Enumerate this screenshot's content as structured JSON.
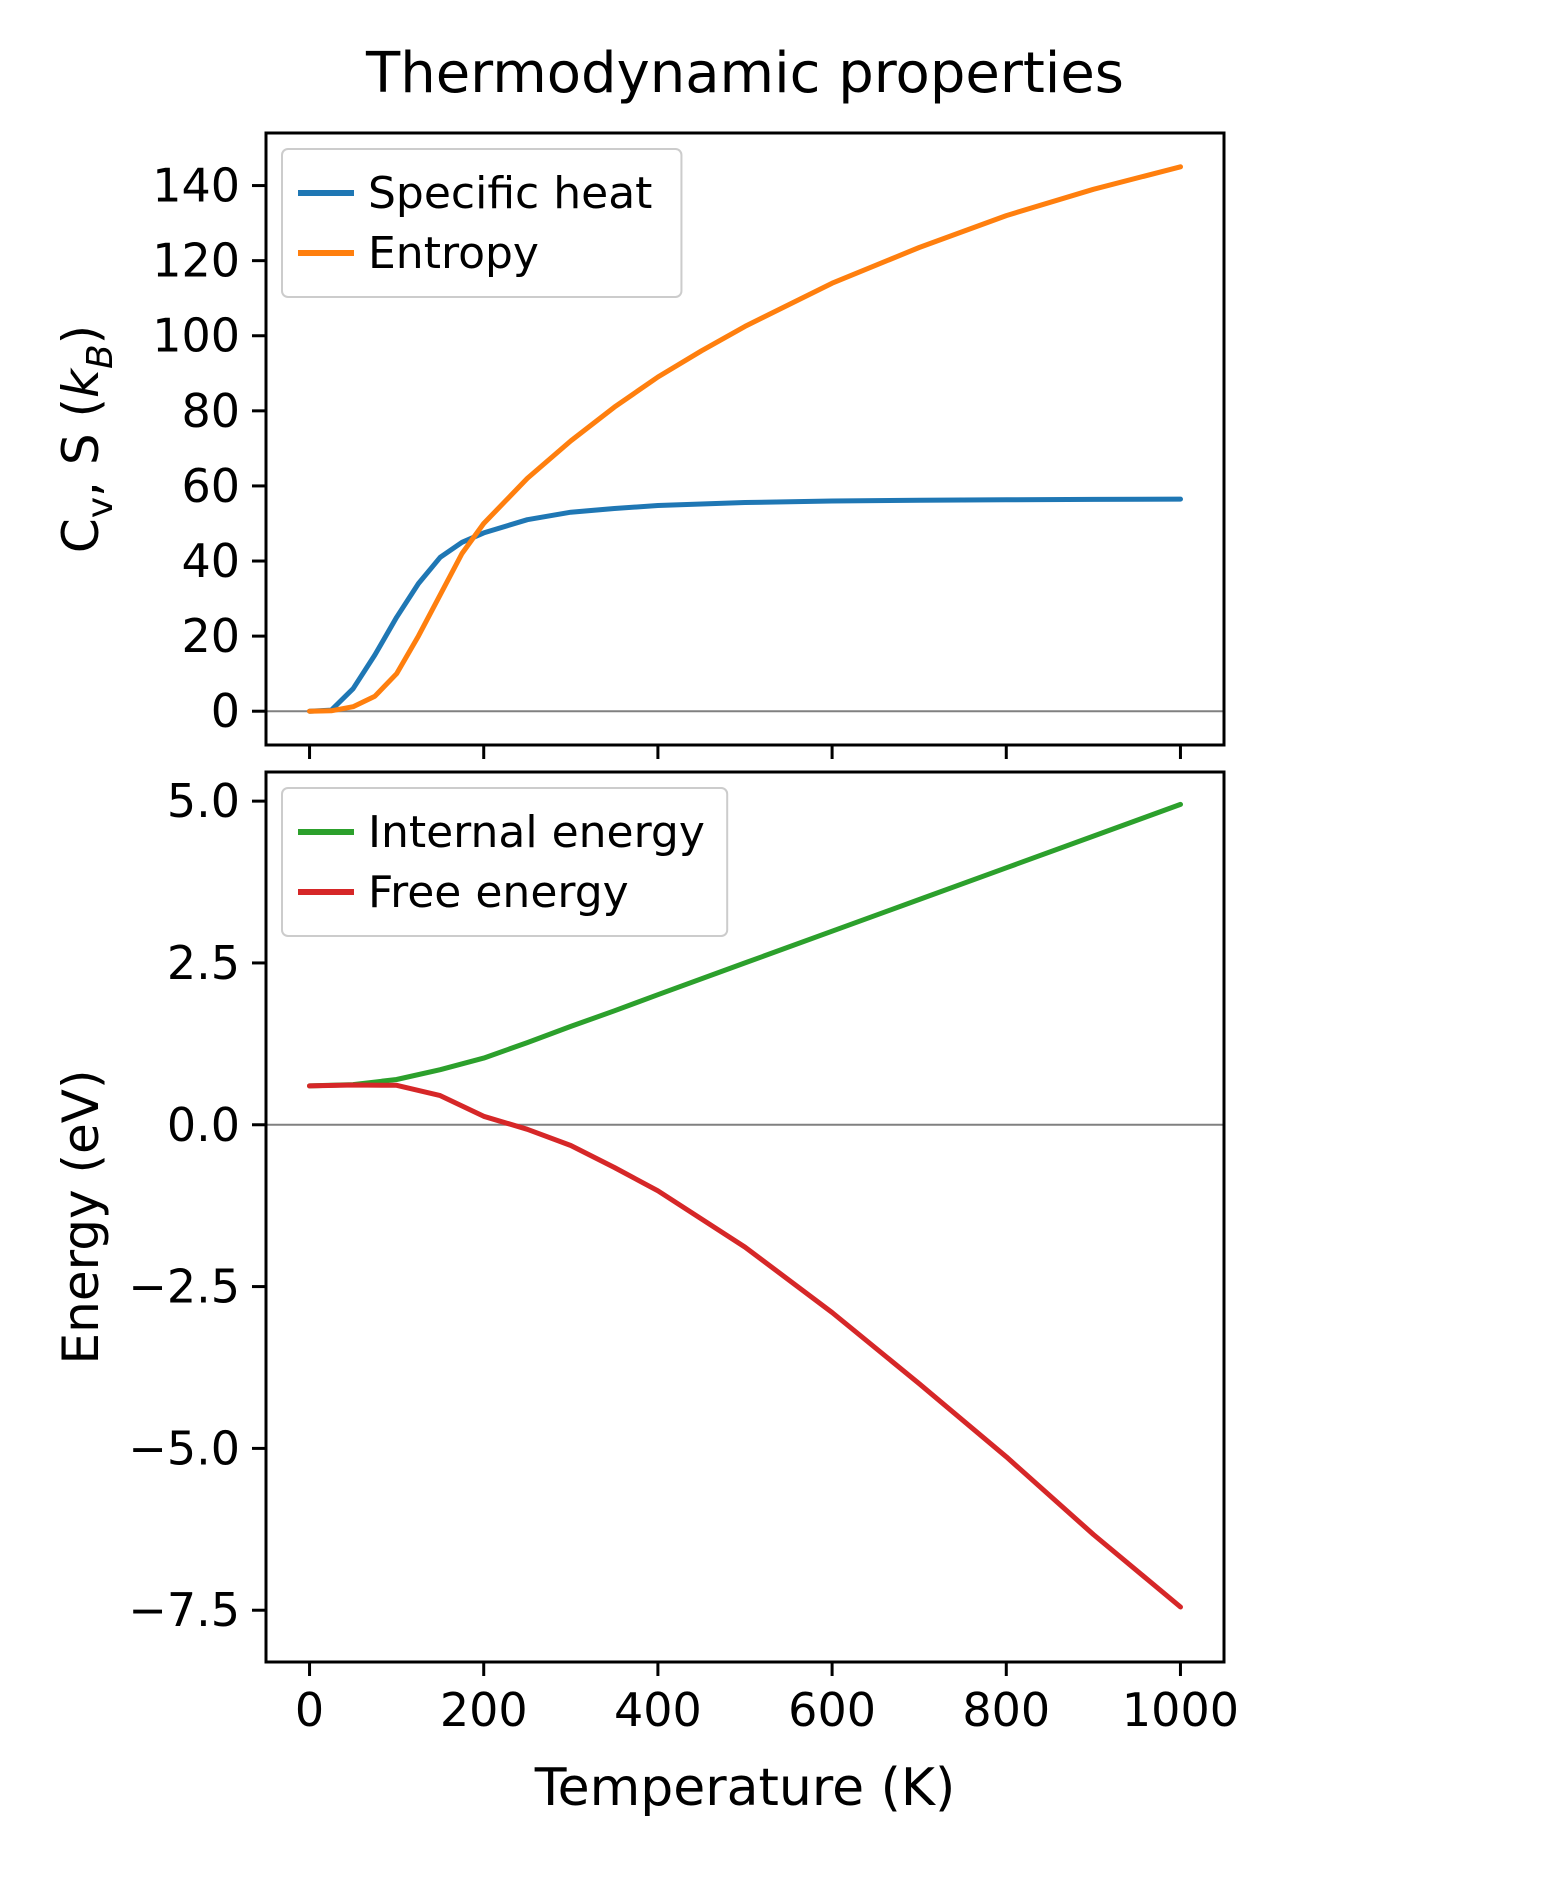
{
  "title": "Thermodynamic properties",
  "xlabel": "Temperature (K)",
  "colors": {
    "specific_heat": "#1f77b4",
    "entropy": "#ff7f0e",
    "internal_energy": "#2ca02c",
    "free_energy": "#d62728",
    "zero_line": "#808080",
    "spine": "#000000",
    "legend_border": "#cccccc"
  },
  "chart_data": [
    {
      "type": "line",
      "ylabel": "Cv, S (kB)",
      "ylabel_parts": [
        {
          "t": "C"
        },
        {
          "t": "v",
          "sub": true
        },
        {
          "t": ", S ("
        },
        {
          "t": "k",
          "italic": true
        },
        {
          "t": "B",
          "sub": true,
          "italic": true
        },
        {
          "t": ")"
        }
      ],
      "xlim": [
        -50,
        1050
      ],
      "ylim": [
        -9,
        154
      ],
      "grid": false,
      "zero_line": true,
      "legend_position": "upper-left",
      "xticks": [
        0,
        200,
        400,
        600,
        800,
        1000
      ],
      "yticks": [
        0,
        20,
        40,
        60,
        80,
        100,
        120,
        140
      ],
      "ytick_labels": [
        "0",
        "20",
        "40",
        "60",
        "80",
        "100",
        "120",
        "140"
      ],
      "x": [
        0,
        25,
        50,
        75,
        100,
        125,
        150,
        175,
        200,
        250,
        300,
        350,
        400,
        450,
        500,
        600,
        700,
        800,
        900,
        1000
      ],
      "series": [
        {
          "name": "specific-heat",
          "label": "Specific heat",
          "color": "#1f77b4",
          "values": [
            0,
            0.3,
            6,
            15,
            25,
            34,
            41,
            45,
            47.5,
            51,
            53,
            54,
            54.8,
            55.2,
            55.6,
            56.0,
            56.2,
            56.3,
            56.4,
            56.5
          ]
        },
        {
          "name": "entropy",
          "label": "Entropy",
          "color": "#ff7f0e",
          "values": [
            0,
            0.1,
            1.2,
            4,
            10,
            20,
            31,
            42,
            50,
            62,
            72,
            81,
            89,
            96,
            102.5,
            114,
            123.5,
            132,
            139,
            145
          ]
        }
      ]
    },
    {
      "type": "line",
      "ylabel": "Energy (eV)",
      "ylabel_parts": [
        {
          "t": "Energy (eV)"
        }
      ],
      "xlim": [
        -50,
        1050
      ],
      "ylim": [
        -8.3,
        5.45
      ],
      "grid": false,
      "zero_line": true,
      "legend_position": "upper-left",
      "xticks": [
        0,
        200,
        400,
        600,
        800,
        1000
      ],
      "xtick_labels": [
        "0",
        "200",
        "400",
        "600",
        "800",
        "1000"
      ],
      "yticks": [
        -7.5,
        -5,
        -2.5,
        0,
        2.5,
        5
      ],
      "ytick_labels": [
        "−7.5",
        "−5.0",
        "−2.5",
        "0.0",
        "2.5",
        "5.0"
      ],
      "x": [
        0,
        50,
        100,
        150,
        200,
        250,
        300,
        350,
        400,
        500,
        600,
        700,
        800,
        900,
        1000
      ],
      "series": [
        {
          "name": "internal-energy",
          "label": "Internal energy",
          "color": "#2ca02c",
          "values": [
            0.6,
            0.62,
            0.7,
            0.85,
            1.03,
            1.27,
            1.52,
            1.76,
            2.01,
            2.5,
            2.99,
            3.48,
            3.97,
            4.46,
            4.95
          ]
        },
        {
          "name": "free-energy",
          "label": "Free energy",
          "color": "#d62728",
          "values": [
            0.6,
            0.615,
            0.61,
            0.45,
            0.13,
            -0.07,
            -0.32,
            -0.66,
            -1.02,
            -1.89,
            -2.9,
            -4.0,
            -5.13,
            -6.33,
            -7.45
          ]
        }
      ]
    }
  ]
}
